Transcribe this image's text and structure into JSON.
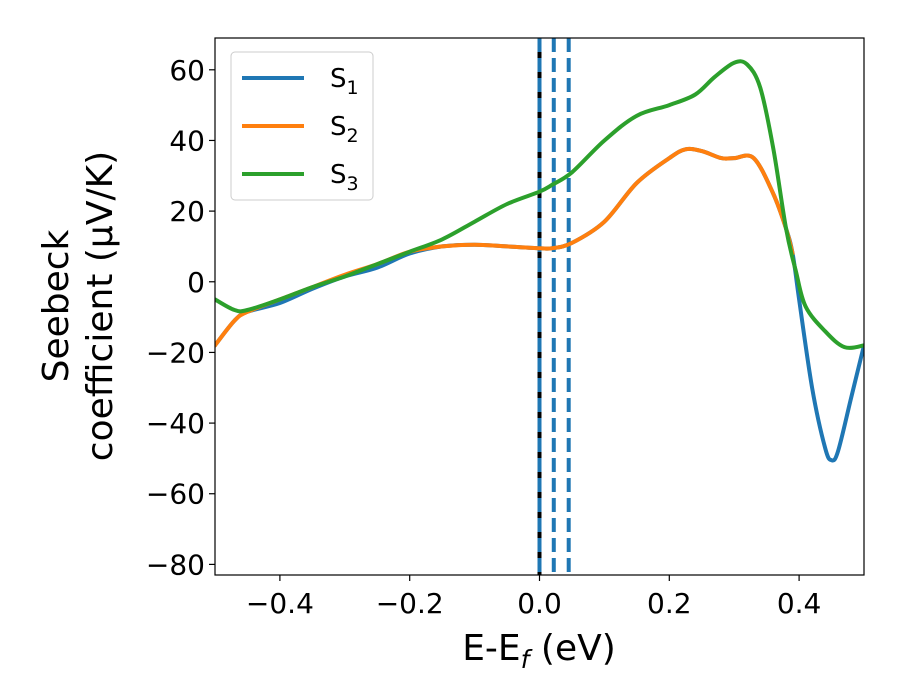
{
  "chart_data": {
    "type": "line",
    "xlabel": "E-E",
    "xlabel_sub": "f",
    "xlabel_unit": " (eV)",
    "ylabel_line1": "Seebeck",
    "ylabel_line2": "coefficient  (μV/K)",
    "xlim": [
      -0.5,
      0.5
    ],
    "ylim": [
      -83,
      69
    ],
    "xticks": [
      -0.4,
      -0.2,
      0.0,
      0.2,
      0.4
    ],
    "xtick_labels": [
      "−0.4",
      "−0.2",
      "0.0",
      "0.2",
      "0.4"
    ],
    "yticks": [
      -80,
      -60,
      -40,
      -20,
      0,
      20,
      40,
      60
    ],
    "ytick_labels": [
      "−80",
      "−60",
      "−40",
      "−20",
      "0",
      "20",
      "40",
      "60"
    ],
    "legend_position": "top-left",
    "series": [
      {
        "name": "S1",
        "label_main": "S",
        "label_sub": "1",
        "color": "#1f77b4",
        "x": [
          -0.5,
          -0.47,
          -0.45,
          -0.4,
          -0.35,
          -0.3,
          -0.25,
          -0.2,
          -0.15,
          -0.1,
          -0.05,
          0.0,
          0.02,
          0.05,
          0.1,
          0.15,
          0.2,
          0.225,
          0.25,
          0.28,
          0.3,
          0.33,
          0.36,
          0.38,
          0.39,
          0.4,
          0.42,
          0.44,
          0.45,
          0.46,
          0.48,
          0.5
        ],
        "values": [
          -18,
          -11,
          -8.5,
          -6,
          -2,
          1.5,
          4,
          8,
          10,
          10.5,
          10,
          9.5,
          9.5,
          11,
          17,
          28,
          35,
          37.5,
          37,
          35,
          35,
          35,
          25,
          15,
          8,
          -5,
          -30,
          -47,
          -50.5,
          -48,
          -33,
          -18
        ]
      },
      {
        "name": "S2",
        "label_main": "S",
        "label_sub": "2",
        "color": "#ff7f0e",
        "x": [
          -0.5,
          -0.47,
          -0.45,
          -0.4,
          -0.35,
          -0.3,
          -0.25,
          -0.2,
          -0.15,
          -0.1,
          -0.05,
          0.0,
          0.02,
          0.05,
          0.1,
          0.15,
          0.2,
          0.225,
          0.25,
          0.28,
          0.3,
          0.33,
          0.36,
          0.38,
          0.39
        ],
        "values": [
          -18,
          -11,
          -8.5,
          -5,
          -1.5,
          2,
          5,
          8.5,
          10,
          10.5,
          10,
          9.5,
          9.5,
          11,
          17,
          28,
          35,
          37.5,
          37,
          35,
          35,
          35,
          25,
          15,
          8
        ]
      },
      {
        "name": "S3",
        "label_main": "S",
        "label_sub": "3",
        "color": "#2ca02c",
        "x": [
          -0.5,
          -0.47,
          -0.45,
          -0.4,
          -0.35,
          -0.3,
          -0.25,
          -0.2,
          -0.15,
          -0.1,
          -0.05,
          0.0,
          0.02,
          0.05,
          0.1,
          0.15,
          0.2,
          0.24,
          0.27,
          0.3,
          0.32,
          0.34,
          0.36,
          0.38,
          0.395,
          0.41,
          0.44,
          0.47,
          0.5
        ],
        "values": [
          -5,
          -8,
          -8,
          -5,
          -1.5,
          1.5,
          5,
          8.5,
          12,
          17,
          22,
          25.5,
          27.5,
          31,
          40,
          47,
          50,
          53,
          58,
          62,
          61.5,
          55,
          38,
          15,
          3,
          -7,
          -14,
          -18.5,
          -18
        ]
      }
    ],
    "reference_lines": [
      {
        "x": 0.0,
        "style": "solid",
        "color": "#000000"
      },
      {
        "x": 0.0,
        "style": "dashed",
        "color": "#1f77b4"
      },
      {
        "x": 0.022,
        "style": "dashed",
        "color": "#1f77b4"
      },
      {
        "x": 0.045,
        "style": "dashed",
        "color": "#1f77b4"
      }
    ]
  }
}
